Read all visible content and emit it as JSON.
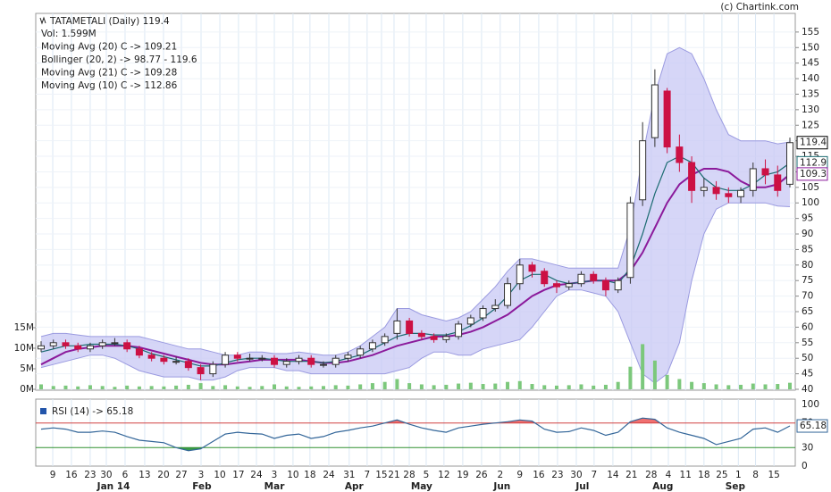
{
  "chart_data": {
    "type": "candlestick",
    "title": "TATAMETALI (Daily) 119.4",
    "credit": "(c) Chartink.com",
    "legend": [
      {
        "text": "Vol: 1.599M",
        "color": "#222222"
      },
      {
        "text": "Moving Avg (20) C -> 109.21",
        "color": "#8b1a9b"
      },
      {
        "text": "Bollinger (20, 2) -> 98.77 - 119.6",
        "color": "#222222"
      },
      {
        "text": "Moving Avg (21) C -> 109.28",
        "color": "#9b30d0"
      },
      {
        "text": "Moving Avg (10) C -> 112.86",
        "color": "#1a6a50"
      }
    ],
    "rsi_title": "RSI (14) -> 65.18",
    "xlim": [
      0,
      61
    ],
    "xticks": [
      {
        "value": 0.95,
        "label": "9"
      },
      {
        "value": 2.47,
        "label": "16"
      },
      {
        "value": 4.0,
        "label": "23"
      },
      {
        "value": 5.31,
        "label": "30"
      },
      {
        "value": 6.84,
        "label": "6"
      },
      {
        "value": 8.44,
        "label": "13"
      },
      {
        "value": 9.97,
        "label": "20"
      },
      {
        "value": 11.43,
        "label": "27"
      },
      {
        "value": 13.03,
        "label": "3"
      },
      {
        "value": 14.56,
        "label": "10"
      },
      {
        "value": 16.08,
        "label": "17"
      },
      {
        "value": 17.54,
        "label": "24"
      },
      {
        "value": 19.0,
        "label": "3"
      },
      {
        "value": 20.52,
        "label": "10"
      },
      {
        "value": 21.9,
        "label": "18"
      },
      {
        "value": 23.44,
        "label": "24"
      },
      {
        "value": 25.1,
        "label": "31"
      },
      {
        "value": 26.56,
        "label": "7"
      },
      {
        "value": 27.73,
        "label": "15"
      },
      {
        "value": 28.75,
        "label": "21"
      },
      {
        "value": 29.99,
        "label": "28"
      },
      {
        "value": 31.37,
        "label": "5"
      },
      {
        "value": 32.82,
        "label": "12"
      },
      {
        "value": 34.35,
        "label": "19"
      },
      {
        "value": 35.88,
        "label": "26"
      },
      {
        "value": 37.4,
        "label": "2"
      },
      {
        "value": 39.0,
        "label": "9"
      },
      {
        "value": 40.54,
        "label": "16"
      },
      {
        "value": 42.07,
        "label": "23"
      },
      {
        "value": 43.6,
        "label": "30"
      },
      {
        "value": 45.05,
        "label": "7"
      },
      {
        "value": 46.58,
        "label": "14"
      },
      {
        "value": 48.1,
        "label": "21"
      },
      {
        "value": 49.7,
        "label": "28"
      },
      {
        "value": 51.1,
        "label": "4"
      },
      {
        "value": 52.5,
        "label": "11"
      },
      {
        "value": 54.0,
        "label": "18"
      },
      {
        "value": 55.46,
        "label": "25"
      },
      {
        "value": 56.8,
        "label": "1"
      },
      {
        "value": 58.2,
        "label": "8"
      },
      {
        "value": 59.7,
        "label": "15"
      }
    ],
    "month_labels": [
      {
        "value": 5.9,
        "label": "Jan 14"
      },
      {
        "value": 13.1,
        "label": "Feb"
      },
      {
        "value": 19.0,
        "label": "Mar"
      },
      {
        "value": 25.5,
        "label": "Apr"
      },
      {
        "value": 31.0,
        "label": "May"
      },
      {
        "value": 37.55,
        "label": "Jun"
      },
      {
        "value": 44.1,
        "label": "Jul"
      },
      {
        "value": 50.65,
        "label": "Aug"
      },
      {
        "value": 56.55,
        "label": "Sep"
      }
    ],
    "ylim": [
      40,
      161
    ],
    "yticks": [
      40,
      45,
      50,
      55,
      60,
      65,
      70,
      75,
      80,
      85,
      90,
      95,
      100,
      105,
      110,
      115,
      120,
      125,
      130,
      135,
      140,
      145,
      150,
      155
    ],
    "vlim": [
      0,
      91.5
    ],
    "vticks": [
      {
        "value": 0,
        "label": "0M"
      },
      {
        "value": 5,
        "label": "5M"
      },
      {
        "value": 10,
        "label": "10M"
      },
      {
        "value": 15,
        "label": "15M"
      }
    ],
    "rsi_ylim": [
      0,
      108.7
    ],
    "rsi_ticks": [
      0,
      30,
      70,
      100
    ],
    "grid": true,
    "up_color": "#ffffff",
    "down_color": "#cc1144",
    "volume_color": "#7cc87c",
    "band_color": "#c8c8f4",
    "open": [
      53,
      54,
      55,
      54,
      53,
      54,
      55,
      55,
      53,
      51,
      50,
      49,
      49,
      47,
      45,
      48,
      51,
      50,
      50,
      50,
      48,
      49,
      50,
      48,
      48,
      50,
      51,
      53,
      55,
      58,
      62,
      58,
      57,
      56,
      57,
      61,
      63,
      66,
      67,
      74,
      80,
      78,
      74,
      73,
      74,
      77,
      75,
      72,
      76,
      101,
      121,
      136,
      118,
      113,
      104,
      105,
      103,
      102,
      104,
      111,
      109,
      106
    ],
    "high": [
      55.5,
      56,
      56,
      55,
      55,
      56,
      56.5,
      56,
      54,
      52,
      51,
      50.5,
      50,
      48,
      49,
      52,
      52,
      51.5,
      51,
      51,
      50,
      51,
      51,
      49,
      51,
      52,
      54,
      56,
      58,
      66,
      63,
      59,
      58,
      58,
      62,
      64,
      67,
      69,
      76,
      82,
      81,
      79,
      75,
      75,
      78,
      78,
      76,
      76,
      102,
      126,
      143,
      137,
      122,
      115,
      108,
      107,
      105,
      105,
      113,
      114,
      112,
      121
    ],
    "low": [
      52,
      53,
      53,
      52,
      52,
      53,
      54,
      52,
      50,
      49,
      48,
      48,
      46,
      43,
      44,
      47,
      49,
      49,
      49,
      47,
      47,
      48,
      47,
      47,
      47,
      49,
      50,
      52,
      54,
      56,
      57,
      56,
      55,
      55,
      56,
      60,
      62,
      65,
      66,
      72,
      76,
      73,
      71,
      72,
      73,
      74,
      70,
      71,
      74,
      99,
      118,
      116,
      110,
      100,
      102,
      101,
      100,
      100,
      102,
      106,
      102,
      105
    ],
    "close": [
      54,
      55,
      54,
      53,
      54,
      55,
      55,
      53,
      51,
      50,
      49,
      49,
      47,
      45,
      48,
      51,
      50,
      50,
      50,
      48,
      49,
      50,
      48,
      48,
      50,
      51,
      53,
      55,
      57,
      62,
      58,
      57,
      56,
      57,
      61,
      63,
      66,
      67,
      74,
      80,
      78,
      74,
      73,
      74,
      77,
      75,
      72,
      75,
      100,
      120,
      138,
      118,
      113,
      104,
      105,
      103,
      102,
      104,
      111,
      109,
      104,
      119.4
    ],
    "volume": [
      1.2,
      0.8,
      0.9,
      0.7,
      1.0,
      0.8,
      0.6,
      0.9,
      0.7,
      0.8,
      0.7,
      0.9,
      1.1,
      1.5,
      0.8,
      1.0,
      0.7,
      0.6,
      0.8,
      1.2,
      0.7,
      0.6,
      0.7,
      0.8,
      1.0,
      0.9,
      1.2,
      1.5,
      1.8,
      2.5,
      1.5,
      1.2,
      1.0,
      1.1,
      1.4,
      1.6,
      1.3,
      1.4,
      1.8,
      2.0,
      1.3,
      1.0,
      0.9,
      1.0,
      1.2,
      0.9,
      1.1,
      1.8,
      5.5,
      11,
      7,
      3.5,
      2.5,
      1.8,
      1.5,
      1.2,
      1.0,
      1.1,
      1.4,
      1.2,
      1.3,
      1.599
    ],
    "bb_upper": [
      57,
      58,
      58,
      57.5,
      57,
      57,
      57,
      57,
      57,
      56,
      55,
      54,
      53,
      53,
      52,
      51,
      51,
      52,
      52,
      51.5,
      51.5,
      52,
      51.5,
      51,
      51,
      52,
      54,
      57,
      60,
      66,
      66,
      64,
      63,
      62,
      63,
      65,
      69,
      73,
      78,
      82,
      82,
      81,
      80,
      79,
      79,
      79,
      79,
      79,
      92,
      115,
      135,
      148,
      150,
      148,
      140,
      130,
      122,
      120,
      120,
      120,
      119,
      119.6
    ],
    "bb_lower": [
      47,
      48,
      49,
      50,
      51,
      51,
      50,
      48,
      46,
      45,
      44,
      44,
      44,
      43,
      43,
      44,
      46,
      47,
      47,
      47,
      46,
      46,
      45,
      45,
      45,
      45,
      45,
      45,
      45,
      46,
      47,
      50,
      52,
      52,
      51,
      51,
      53,
      54,
      55,
      56,
      60,
      65,
      70,
      72,
      72,
      71,
      70,
      65,
      55,
      45,
      42,
      45,
      55,
      75,
      90,
      98,
      100,
      100,
      100,
      100,
      99,
      98.77
    ],
    "series": [
      {
        "name": "MA20",
        "color": "#8b1a9b",
        "values": [
          48,
          50,
          52,
          53,
          53.5,
          54,
          54,
          54,
          53.5,
          52.5,
          51.5,
          50.5,
          49.5,
          48.5,
          48,
          48,
          48.5,
          49,
          49.5,
          49.5,
          49.5,
          49.5,
          49,
          48.5,
          48.5,
          49,
          50,
          51,
          52.5,
          54,
          55,
          56,
          57,
          57,
          57.5,
          58.5,
          60,
          62,
          64,
          67,
          70,
          72,
          73.5,
          74,
          74.5,
          75,
          75,
          75,
          78,
          84,
          92,
          100,
          106,
          109,
          111,
          111,
          110,
          107,
          105,
          105,
          106,
          109.21
        ]
      },
      {
        "name": "MA10",
        "color": "#1a6a70",
        "values": [
          52,
          53,
          54,
          54,
          54.5,
          54.5,
          54.5,
          54,
          53,
          51.5,
          50.5,
          49.5,
          48.5,
          47.5,
          47.5,
          48.5,
          49.5,
          50,
          50,
          49.5,
          49,
          49,
          49,
          48.5,
          49,
          50,
          51,
          53,
          55,
          57,
          58,
          58,
          57.5,
          57.5,
          58.5,
          60.5,
          63,
          66,
          70,
          75,
          77,
          77,
          75,
          74,
          74.5,
          75,
          75,
          74,
          79,
          90,
          103,
          113,
          115,
          113,
          108,
          105,
          104,
          104,
          106,
          109,
          110,
          112.86
        ]
      }
    ],
    "rsi": {
      "color": "#336699",
      "values": [
        60,
        62,
        60,
        55,
        55,
        57,
        55,
        48,
        42,
        40,
        38,
        30,
        25,
        28,
        40,
        52,
        55,
        53,
        52,
        45,
        50,
        52,
        45,
        48,
        55,
        58,
        62,
        65,
        70,
        75,
        68,
        62,
        58,
        55,
        62,
        65,
        68,
        70,
        72,
        75,
        73,
        60,
        55,
        56,
        62,
        58,
        50,
        55,
        72,
        78,
        76,
        62,
        55,
        50,
        45,
        35,
        40,
        45,
        60,
        62,
        55,
        65.18
      ]
    },
    "price_tags": [
      {
        "value": 119.4,
        "color": "#000000"
      },
      {
        "value": 112.9,
        "color": "#1a6a70"
      },
      {
        "value": 109.3,
        "color": "#8b1a9b"
      }
    ]
  }
}
